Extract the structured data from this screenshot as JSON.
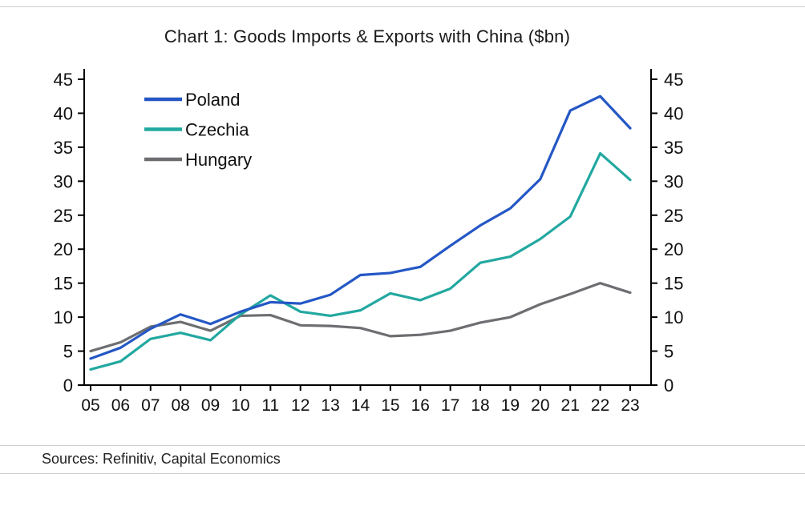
{
  "page": {
    "title": "Chart 1: Goods Imports & Exports with China ($bn)",
    "sources": "Sources: Refinitiv, Capital Economics"
  },
  "chart_data": {
    "type": "line",
    "title": "Chart 1: Goods Imports & Exports with China ($bn)",
    "categories": [
      "05",
      "06",
      "07",
      "08",
      "09",
      "10",
      "11",
      "12",
      "13",
      "14",
      "15",
      "16",
      "17",
      "18",
      "19",
      "20",
      "21",
      "22",
      "23"
    ],
    "series": [
      {
        "name": "Poland",
        "color": "#2457c5",
        "values": [
          3.9,
          5.5,
          8.3,
          10.4,
          9.0,
          10.8,
          12.2,
          12.0,
          13.3,
          16.2,
          16.5,
          17.4,
          20.5,
          23.5,
          26.0,
          30.3,
          40.4,
          42.5,
          37.8
        ]
      },
      {
        "name": "Czechia",
        "color": "#22a8a0",
        "values": [
          2.3,
          3.5,
          6.8,
          7.7,
          6.6,
          10.4,
          13.2,
          10.8,
          10.2,
          11.0,
          13.5,
          12.5,
          14.2,
          18.0,
          18.9,
          21.5,
          24.8,
          34.1,
          30.2
        ]
      },
      {
        "name": "Hungary",
        "color": "#6d6e71",
        "values": [
          5.0,
          6.3,
          8.6,
          9.3,
          8.0,
          10.2,
          10.3,
          8.8,
          8.7,
          8.4,
          7.2,
          7.4,
          8.0,
          9.2,
          10.0,
          11.9,
          13.4,
          15.0,
          13.6
        ]
      }
    ],
    "xlabel": "",
    "ylabel": "",
    "ylim": [
      0,
      45
    ],
    "yticks": [
      0,
      5,
      10,
      15,
      20,
      25,
      30,
      35,
      40,
      45
    ],
    "grid": false,
    "legend_position": "top-left",
    "axes": {
      "left": true,
      "right": true,
      "bottom": true
    },
    "axis_color": "#000000"
  }
}
